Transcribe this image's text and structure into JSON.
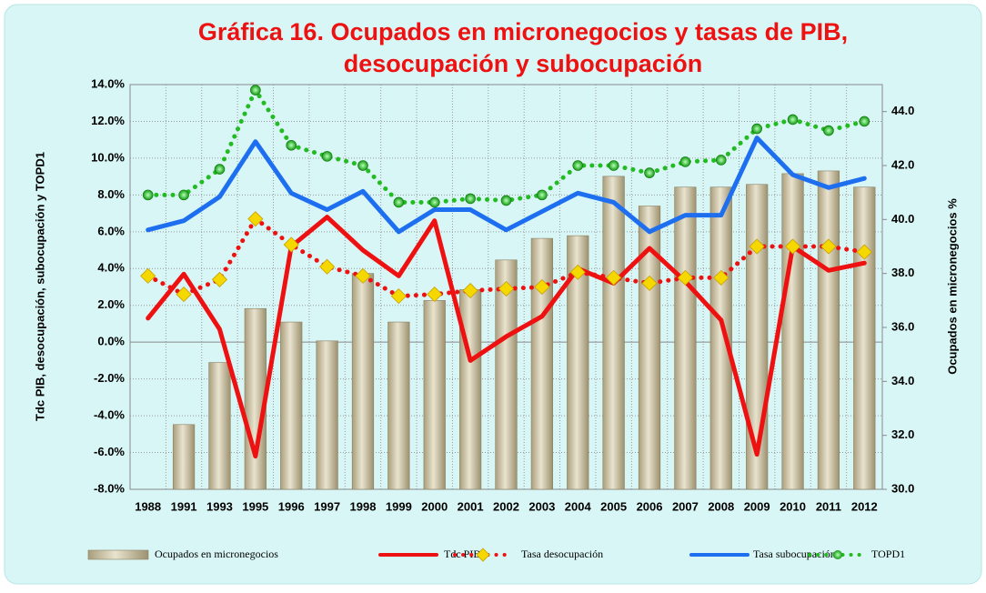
{
  "chart_data": {
    "type": "combo",
    "title": [
      "Gráfica 16. Ocupados en micronegocios y tasas de PIB,",
      "desocupación y subocupación"
    ],
    "y_label": "Tdc PIB, desocupación, subocupación y TOPD1",
    "y2_label": "Ocupados  en  micronegocios %",
    "categories": [
      "1988",
      "1991",
      "1993",
      "1995",
      "1996",
      "1997",
      "1998",
      "1999",
      "2000",
      "2001",
      "2002",
      "2003",
      "2004",
      "2005",
      "2006",
      "2007",
      "2008",
      "2009",
      "2010",
      "2011",
      "2012"
    ],
    "ylim": [
      -8,
      14
    ],
    "yticks": [
      {
        "value": -8,
        "label": "-8.0%"
      },
      {
        "value": -6,
        "label": "-6.0%"
      },
      {
        "value": -4,
        "label": "-4.0%"
      },
      {
        "value": -2,
        "label": "-2.0%"
      },
      {
        "value": 0,
        "label": "0.0%"
      },
      {
        "value": 2,
        "label": "2.0%"
      },
      {
        "value": 4,
        "label": "4.0%"
      },
      {
        "value": 6,
        "label": "6.0%"
      },
      {
        "value": 8,
        "label": "8.0%"
      },
      {
        "value": 10,
        "label": "10.0%"
      },
      {
        "value": 12,
        "label": "12.0%"
      },
      {
        "value": 14,
        "label": "14.0%"
      }
    ],
    "y2lim": [
      30,
      45
    ],
    "y2ticks": [
      {
        "value": 30,
        "label": "30.0"
      },
      {
        "value": 32,
        "label": "32.0"
      },
      {
        "value": 34,
        "label": "34.0"
      },
      {
        "value": 36,
        "label": "36.0"
      },
      {
        "value": 38,
        "label": "38.0"
      },
      {
        "value": 40,
        "label": "40.0"
      },
      {
        "value": 42,
        "label": "42.0"
      },
      {
        "value": 44,
        "label": "44.0"
      }
    ],
    "grid": true,
    "series": [
      {
        "name": "Ocupados en micronegocios",
        "type": "bar",
        "axis": "y2",
        "color": "#cbc2a3",
        "values": [
          null,
          32.4,
          34.7,
          36.7,
          36.2,
          35.5,
          38.0,
          36.2,
          37.0,
          37.4,
          38.5,
          39.3,
          39.4,
          41.6,
          40.5,
          41.2,
          41.2,
          41.3,
          41.7,
          41.8,
          41.2
        ]
      },
      {
        "name": "Tdc PIB",
        "type": "line",
        "color": "#ee1111",
        "dash": "solid",
        "values": [
          1.3,
          3.7,
          0.7,
          -6.2,
          5.2,
          6.8,
          5.0,
          3.6,
          6.6,
          -1.0,
          0.3,
          1.4,
          4.0,
          3.2,
          5.1,
          3.3,
          1.2,
          -6.1,
          5.2,
          3.9,
          4.3
        ]
      },
      {
        "name": "Tasa desocupación",
        "type": "line",
        "color": "#ee1111",
        "dash": "dotted",
        "marker": "diamond",
        "marker_color": "#f5d800",
        "values": [
          3.6,
          2.6,
          3.4,
          6.7,
          5.3,
          4.1,
          3.6,
          2.5,
          2.6,
          2.8,
          2.9,
          3.0,
          3.8,
          3.5,
          3.2,
          3.5,
          3.5,
          5.2,
          5.2,
          5.2,
          4.9
        ]
      },
      {
        "name": "Tasa subocupación",
        "type": "line",
        "color": "#1e6ff0",
        "dash": "solid",
        "values": [
          6.1,
          6.6,
          7.9,
          10.9,
          8.1,
          7.2,
          8.2,
          6.0,
          7.2,
          7.2,
          6.1,
          7.1,
          8.1,
          7.6,
          6.0,
          6.9,
          6.9,
          11.1,
          9.1,
          8.4,
          8.9
        ]
      },
      {
        "name": "TOPD1",
        "type": "line",
        "color": "#22bb22",
        "dash": "dotted",
        "marker": "circle",
        "marker_color": "#22bb22",
        "values": [
          8.0,
          8.0,
          9.4,
          13.7,
          10.7,
          10.1,
          9.6,
          7.6,
          7.6,
          7.8,
          7.7,
          8.0,
          9.6,
          9.6,
          9.2,
          9.8,
          9.9,
          11.6,
          12.1,
          11.5,
          12.0
        ]
      }
    ]
  }
}
